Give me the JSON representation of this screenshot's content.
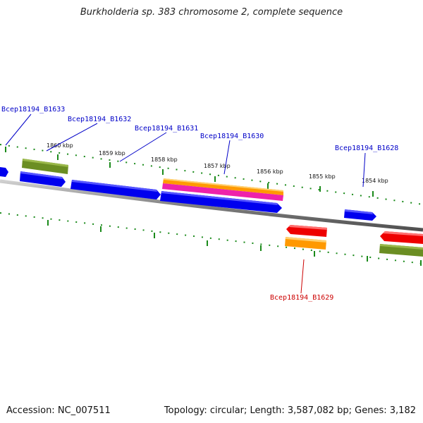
{
  "title": "Burkholderia sp. 383 chromosome 2, complete sequence",
  "footer": {
    "accession": "Accession: NC_007511",
    "summary": "Topology: circular; Length: 3,587,082 bp; Genes: 3,182"
  },
  "colors": {
    "backbone": "#808080",
    "tick": "#1a8a1a",
    "label_blue": "#0000c8",
    "label_red": "#cc0000",
    "gene_blue": "#0000ee",
    "gene_olive": "#6b8e23",
    "gene_orange": "#ff9900",
    "gene_magenta": "#ee22aa",
    "gene_red": "#ee0000"
  },
  "ruler_labels": [
    "1860 kbp",
    "1859 kbp",
    "1858 kbp",
    "1857 kbp",
    "1856 kbp",
    "1855 kbp",
    "1854 kbp"
  ],
  "gene_labels": [
    {
      "text": "Bcep18194_B1633",
      "color": "blue"
    },
    {
      "text": "Bcep18194_B1632",
      "color": "blue"
    },
    {
      "text": "Bcep18194_B1631",
      "color": "blue"
    },
    {
      "text": "Bcep18194_B1630",
      "color": "blue"
    },
    {
      "text": "Bcep18194_B1628",
      "color": "blue"
    },
    {
      "text": "Bcep18194_B1629",
      "color": "red"
    }
  ]
}
